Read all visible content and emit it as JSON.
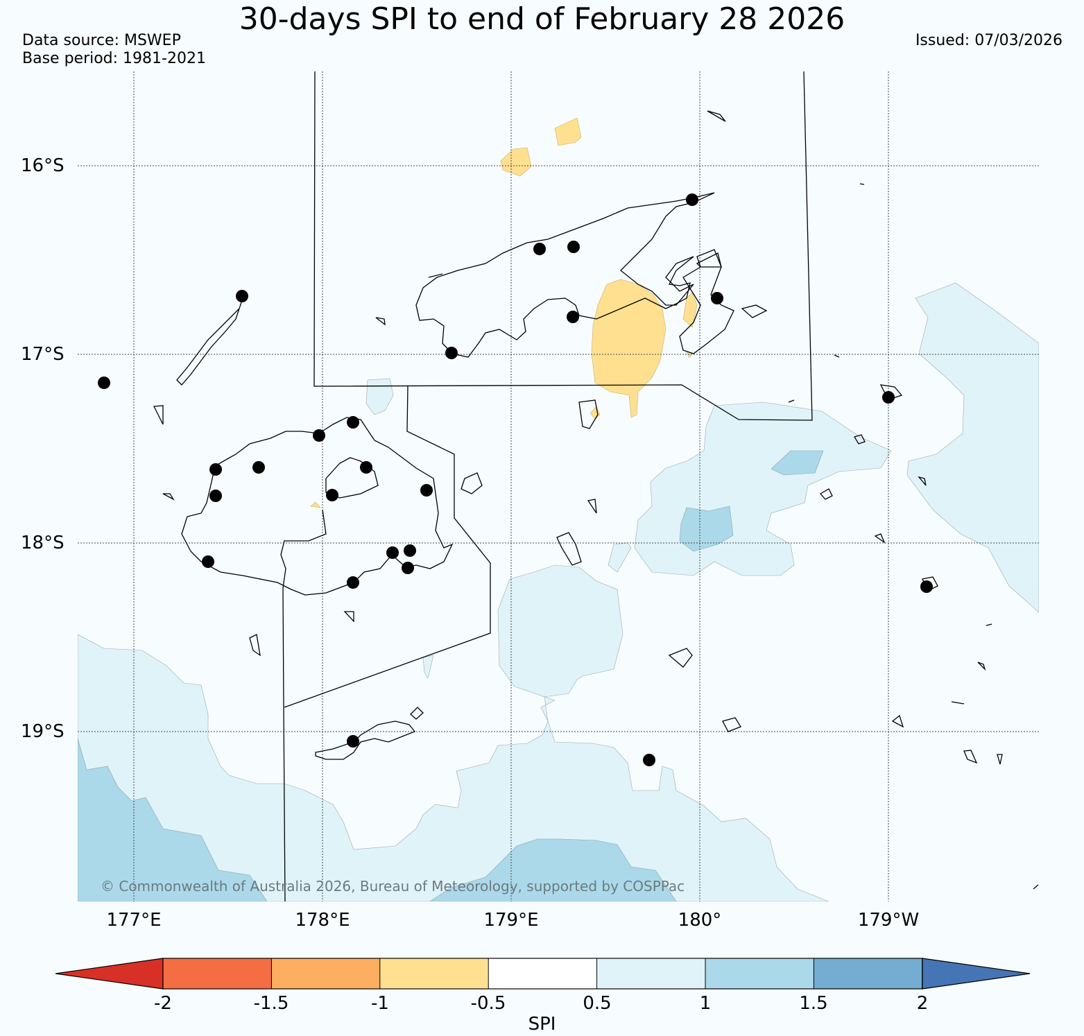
{
  "header": {
    "title": "30-days SPI to end of February 28 2026",
    "data_source": "Data source: MSWEP",
    "base_period": "Base period: 1981-2021",
    "issued": "Issued: 07/03/2026"
  },
  "map": {
    "lat_labels": [
      "16°S",
      "17°S",
      "18°S",
      "19°S"
    ],
    "lon_labels": [
      "177°E",
      "178°E",
      "179°E",
      "180°",
      "179°W"
    ],
    "credit": "© Commonwealth of Australia 2026, Bureau of Meteorology, supported by COSPPac",
    "station_marker": "black-dot",
    "shading_classes_present": [
      "-1 to -0.5",
      "0.5 to 1",
      "1 to 1.5"
    ]
  },
  "colorbar": {
    "title": "SPI",
    "ticks": [
      "-2",
      "-1.5",
      "-1",
      "-0.5",
      "0.5",
      "1",
      "1.5",
      "2"
    ],
    "colors": {
      "below_-2": "#d73027",
      "-2_to_-1.5": "#f46d43",
      "-1.5_to_-1": "#fdae61",
      "-1_to_-0.5": "#fee090",
      "-0.5_to_0.5": "#ffffff",
      "0.5_to_1": "#e0f3f8",
      "1_to_1.5": "#abd9e9",
      "1.5_to_2": "#74add1",
      "above_2": "#4575b4"
    }
  }
}
